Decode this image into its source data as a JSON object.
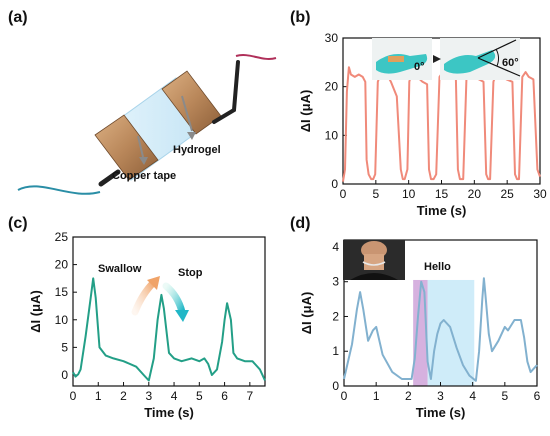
{
  "panels": {
    "a": {
      "label": "(a)",
      "callouts": [
        "Hydrogel",
        "Copper tape"
      ],
      "colors": {
        "hydrogel": "#cfe9f7",
        "copper": "#b9875a",
        "wire_left": "#2a8ea6",
        "wire_right": "#b0305a"
      }
    },
    "b": {
      "label": "(b)",
      "inset_labels": [
        "0°",
        "60°"
      ]
    },
    "c": {
      "label": "(c)",
      "annotations": [
        "Swallow",
        "Stop"
      ]
    },
    "d": {
      "label": "(d)",
      "annotations": [
        "Hello"
      ],
      "highlight_colors": {
        "first": "#cfa3d9",
        "second": "#bfe6f7"
      }
    }
  },
  "chart_data": [
    {
      "panel": "b",
      "type": "line",
      "xlabel": "Time (s)",
      "ylabel": "ΔI (μA)",
      "xlim": [
        0,
        30
      ],
      "ylim": [
        0,
        30
      ],
      "xticks": [
        0,
        5,
        10,
        15,
        20,
        25,
        30
      ],
      "yticks": [
        0,
        10,
        20,
        30
      ],
      "color": "#f08a7a",
      "x": [
        0,
        0.3,
        0.6,
        0.9,
        1.2,
        1.8,
        2.4,
        3.0,
        3.4,
        3.6,
        3.9,
        4.3,
        4.6,
        4.9,
        5.3,
        5.8,
        6.2,
        6.5,
        6.9,
        7.3,
        8.2,
        8.8,
        9.1,
        9.4,
        9.8,
        10.1,
        10.5,
        11.3,
        12.1,
        12.8,
        13.1,
        13.4,
        13.8,
        14.2,
        14.7,
        15.2,
        15.9,
        16.6,
        17.2,
        17.5,
        17.8,
        18.3,
        18.8,
        19.3,
        20.0,
        20.7,
        21.4,
        21.8,
        22.1,
        22.4,
        22.9,
        23.4,
        24.1,
        24.9,
        25.8,
        26.2,
        26.5,
        26.8,
        27.3,
        27.8,
        28.3,
        29.0,
        29.6,
        30.0
      ],
      "y": [
        0.5,
        3,
        19,
        24,
        22.5,
        22,
        22.5,
        22,
        21,
        5,
        2,
        1,
        1,
        2,
        21,
        23,
        22,
        22.5,
        22,
        21,
        18,
        3,
        1,
        1,
        3,
        21,
        23,
        22,
        21,
        20.5,
        3,
        1,
        1,
        2,
        22,
        23,
        22.5,
        22,
        21.5,
        3,
        1,
        1,
        22,
        23,
        22,
        21.5,
        21,
        2,
        1,
        1,
        21,
        23,
        22,
        21.5,
        21,
        2,
        1,
        1,
        22,
        23,
        22,
        21.5,
        3,
        1.5
      ]
    },
    {
      "panel": "c",
      "type": "line",
      "xlabel": "Time (s)",
      "ylabel": "ΔI (μA)",
      "xlim": [
        0,
        7.6
      ],
      "ylim": [
        -2,
        25
      ],
      "xticks": [
        0,
        1,
        2,
        3,
        4,
        5,
        6,
        7
      ],
      "yticks": [
        0,
        5,
        10,
        15,
        20,
        25
      ],
      "color": "#239f87",
      "x": [
        0.0,
        0.1,
        0.2,
        0.3,
        0.5,
        0.7,
        0.8,
        0.9,
        1.05,
        1.3,
        1.6,
        2.0,
        2.5,
        2.8,
        3.0,
        3.2,
        3.35,
        3.5,
        3.6,
        3.8,
        4.0,
        4.3,
        4.7,
        5.0,
        5.2,
        5.35,
        5.5,
        5.7,
        5.9,
        6.0,
        6.1,
        6.25,
        6.35,
        6.5,
        6.8,
        7.1,
        7.4,
        7.6
      ],
      "y": [
        0.5,
        -0.3,
        0.1,
        1,
        7,
        14,
        17.5,
        14,
        5,
        3.5,
        3,
        2.5,
        1.5,
        0,
        -1,
        3,
        10,
        14.5,
        12,
        4,
        3,
        2.5,
        3,
        2.5,
        3,
        2,
        0,
        1,
        6,
        10,
        13,
        10,
        4,
        3,
        2.5,
        2.5,
        1,
        -1
      ]
    },
    {
      "panel": "d",
      "type": "line",
      "xlabel": "Time (s)",
      "ylabel": "ΔI (μA)",
      "xlim": [
        0,
        6
      ],
      "ylim": [
        0,
        4.2
      ],
      "xticks": [
        0,
        1,
        2,
        3,
        4,
        5,
        6
      ],
      "yticks": [
        0,
        1,
        2,
        3,
        4
      ],
      "color": "#82b1cf",
      "x": [
        0,
        0.1,
        0.25,
        0.4,
        0.5,
        0.6,
        0.75,
        0.9,
        1.0,
        1.2,
        1.5,
        1.8,
        2.1,
        2.2,
        2.3,
        2.4,
        2.5,
        2.6,
        2.7,
        2.8,
        2.9,
        3.0,
        3.1,
        3.3,
        3.5,
        3.7,
        3.9,
        4.1,
        4.2,
        4.3,
        4.35,
        4.4,
        4.5,
        4.6,
        4.8,
        5.0,
        5.1,
        5.3,
        5.5,
        5.6,
        5.7,
        5.8,
        6.0
      ],
      "y": [
        0.2,
        0.6,
        1.2,
        2.2,
        2.7,
        2.2,
        1.3,
        1.6,
        1.7,
        0.9,
        0.4,
        0.2,
        0.2,
        0.8,
        2.0,
        3.0,
        2.7,
        0.7,
        0.2,
        1.0,
        1.5,
        1.8,
        1.9,
        1.7,
        1.1,
        0.6,
        0.3,
        0.15,
        1.0,
        2.5,
        3.1,
        2.6,
        1.5,
        1.0,
        1.3,
        1.7,
        1.6,
        1.9,
        1.9,
        1.4,
        0.7,
        0.4,
        0.6
      ],
      "highlights": [
        [
          2.15,
          2.6
        ],
        [
          2.6,
          4.05
        ]
      ]
    }
  ]
}
